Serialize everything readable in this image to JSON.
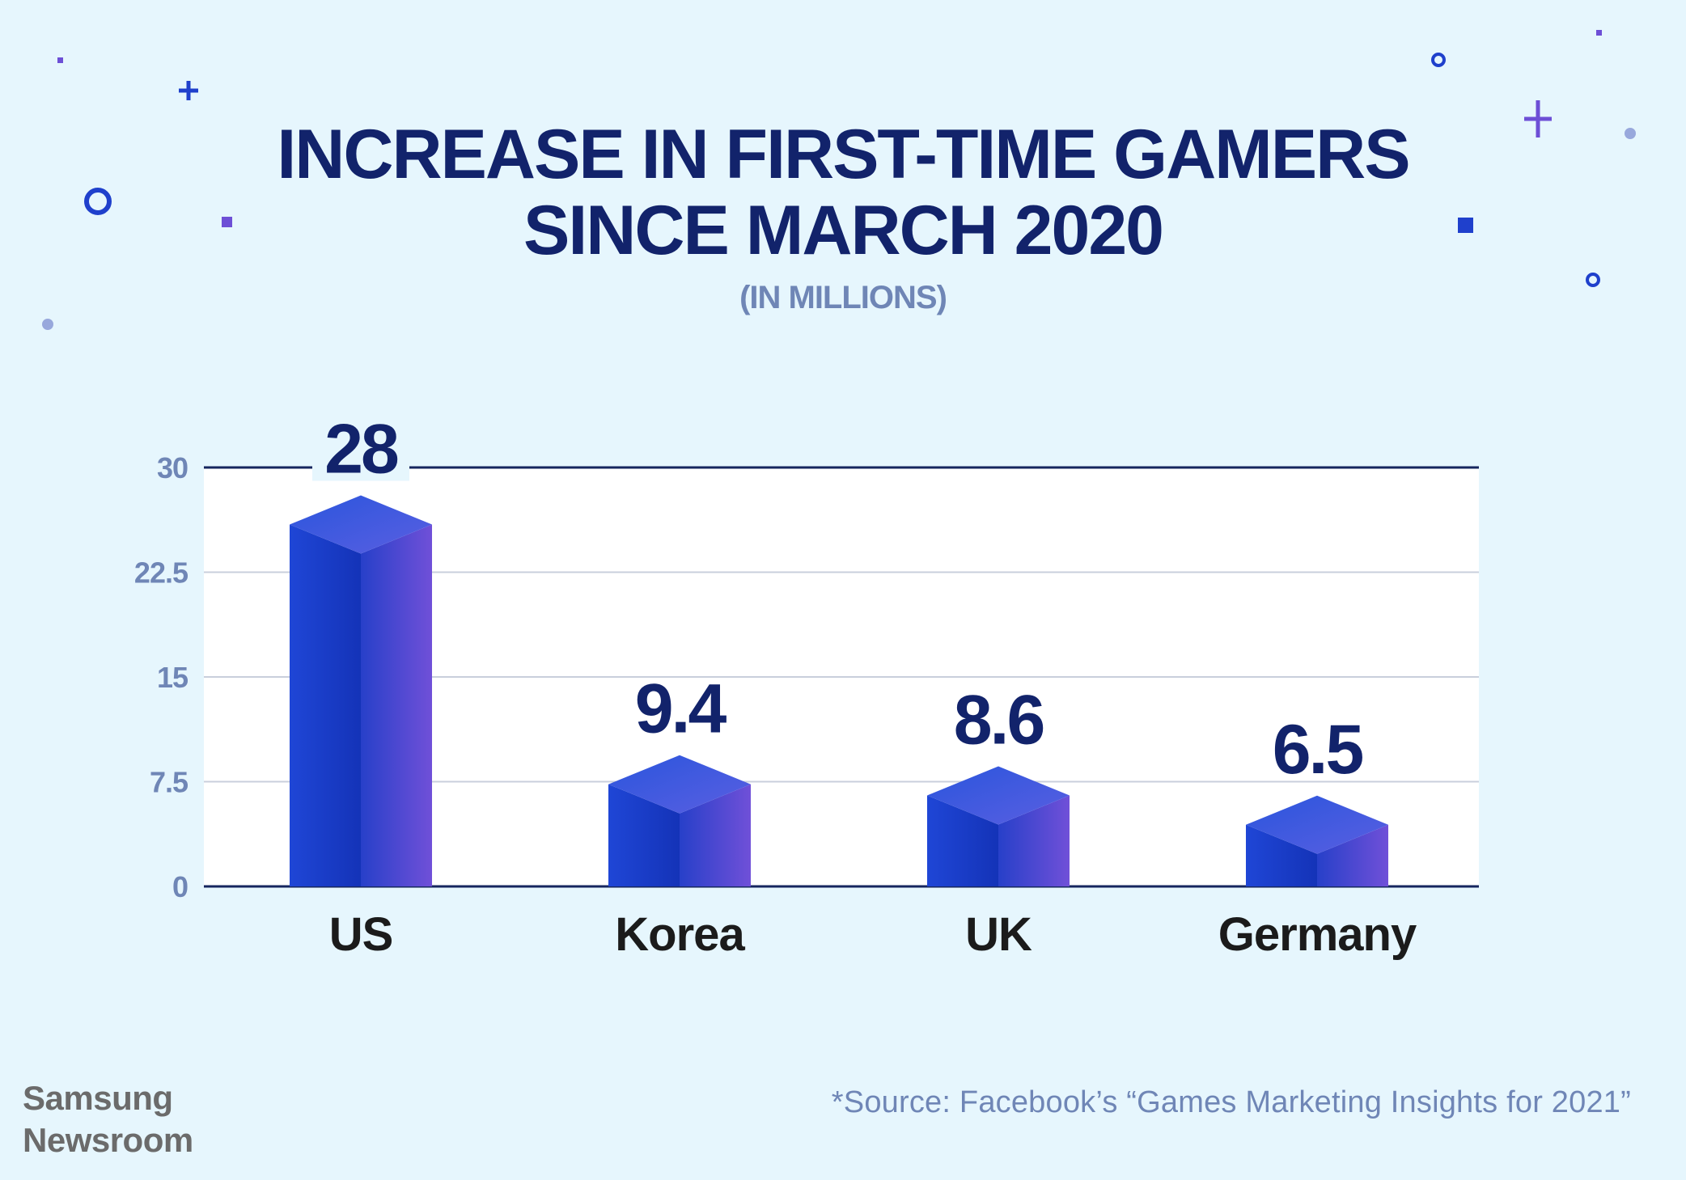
{
  "title_lines": [
    "INCREASE IN FIRST-TIME GAMERS",
    "SINCE MARCH 2020"
  ],
  "subtitle": "(IN MILLIONS)",
  "brand": {
    "line1": "Samsung",
    "line2": "Newsroom"
  },
  "source": "*Source: Facebook’s “Games Marketing Insights for 2021”",
  "colors": {
    "title": "#12236b",
    "axis_text": "#6f86b6",
    "category_text": "#1b1b1b",
    "bar_front": "#1a3fcf",
    "bar_side": "#6a4fd6",
    "bar_top": "#3a5fe0",
    "plot_bg": "#ffffff",
    "background": "#e6f6fd"
  },
  "chart_data": {
    "type": "bar",
    "title": "INCREASE IN FIRST-TIME GAMERS SINCE MARCH 2020",
    "subtitle": "(IN MILLIONS)",
    "categories": [
      "US",
      "Korea",
      "UK",
      "Germany"
    ],
    "values": [
      28,
      9.4,
      8.6,
      6.5
    ],
    "value_labels": [
      "28",
      "9.4",
      "8.6",
      "6.5"
    ],
    "ylim": [
      0,
      30
    ],
    "yticks": [
      0,
      7.5,
      15,
      22.5,
      30
    ],
    "ytick_labels": [
      "0",
      "7.5",
      "15",
      "22.5",
      "30"
    ],
    "grid": true,
    "legend": "none"
  }
}
